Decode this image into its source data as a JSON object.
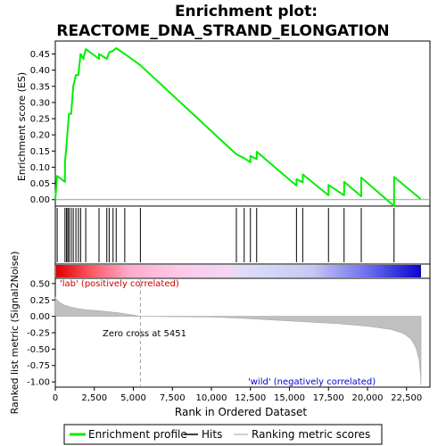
{
  "chart_data": {
    "type": "line",
    "title_line1": "Enrichment plot:",
    "title_line2": "REACTOME_DNA_STRAND_ELONGATION",
    "xlabel": "Rank in Ordered Dataset",
    "top_ylabel": "Enrichment score (ES)",
    "bottom_ylabel": "Ranked list metric (Signal2Noise)",
    "x_ticks": [
      0,
      2500,
      5000,
      7500,
      10000,
      12500,
      15000,
      17500,
      20000,
      22500
    ],
    "x_tick_labels": [
      "0",
      "2,500",
      "5,000",
      "7,500",
      "10,000",
      "12,500",
      "15,000",
      "17,500",
      "20,000",
      "22,500"
    ],
    "xlim": [
      0,
      24000
    ],
    "es_yticks": [
      0.0,
      0.05,
      0.1,
      0.15,
      0.2,
      0.25,
      0.3,
      0.35,
      0.4,
      0.45
    ],
    "es_ytick_labels": [
      "0.00",
      "0.05",
      "0.10",
      "0.15",
      "0.20",
      "0.25",
      "0.30",
      "0.35",
      "0.40",
      "0.45"
    ],
    "es_ylim": [
      -0.02,
      0.49
    ],
    "metric_yticks": [
      0.5,
      0.25,
      0.0,
      -0.25,
      -0.5,
      -0.75,
      -1.0
    ],
    "metric_ytick_labels": [
      "0.50",
      "0.25",
      "0.00",
      "-0.25",
      "-0.50",
      "-0.75",
      "-1.00"
    ],
    "metric_ylim": [
      -1.08,
      0.58
    ],
    "hits": [
      120,
      620,
      720,
      800,
      880,
      1020,
      1150,
      1320,
      1480,
      1620,
      1950,
      2800,
      3300,
      3450,
      3700,
      3900,
      4450,
      5450,
      11600,
      12100,
      12500,
      12900,
      15450,
      15850,
      17500,
      18500,
      19600,
      21700
    ],
    "es_points": [
      [
        0,
        0.0
      ],
      [
        120,
        0.073
      ],
      [
        620,
        0.055
      ],
      [
        620,
        0.115
      ],
      [
        720,
        0.17
      ],
      [
        800,
        0.22
      ],
      [
        880,
        0.265
      ],
      [
        1020,
        0.265
      ],
      [
        1150,
        0.35
      ],
      [
        1320,
        0.385
      ],
      [
        1480,
        0.385
      ],
      [
        1620,
        0.45
      ],
      [
        1800,
        0.435
      ],
      [
        1950,
        0.465
      ],
      [
        2800,
        0.435
      ],
      [
        2800,
        0.45
      ],
      [
        3300,
        0.435
      ],
      [
        3450,
        0.455
      ],
      [
        3700,
        0.46
      ],
      [
        3900,
        0.468
      ],
      [
        4450,
        0.45
      ],
      [
        5450,
        0.415
      ],
      [
        11600,
        0.14
      ],
      [
        12100,
        0.128
      ],
      [
        12500,
        0.115
      ],
      [
        12500,
        0.135
      ],
      [
        12900,
        0.125
      ],
      [
        12900,
        0.148
      ],
      [
        15450,
        0.043
      ],
      [
        15450,
        0.063
      ],
      [
        15850,
        0.053
      ],
      [
        15850,
        0.078
      ],
      [
        17500,
        0.013
      ],
      [
        17500,
        0.045
      ],
      [
        18500,
        0.013
      ],
      [
        18500,
        0.055
      ],
      [
        19600,
        0.01
      ],
      [
        19600,
        0.068
      ],
      [
        21700,
        -0.02
      ],
      [
        21700,
        0.07
      ],
      [
        23400,
        0.002
      ]
    ],
    "metric_points": [
      [
        0,
        0.29
      ],
      [
        100,
        0.25
      ],
      [
        300,
        0.21
      ],
      [
        600,
        0.17
      ],
      [
        1000,
        0.14
      ],
      [
        1500,
        0.115
      ],
      [
        2000,
        0.1
      ],
      [
        3000,
        0.08
      ],
      [
        4000,
        0.055
      ],
      [
        5000,
        0.02
      ],
      [
        5451,
        0.0
      ],
      [
        7000,
        -0.005
      ],
      [
        10000,
        -0.01
      ],
      [
        12000,
        -0.03
      ],
      [
        15000,
        -0.07
      ],
      [
        18000,
        -0.11
      ],
      [
        20000,
        -0.15
      ],
      [
        21500,
        -0.2
      ],
      [
        22300,
        -0.26
      ],
      [
        22800,
        -0.35
      ],
      [
        23100,
        -0.48
      ],
      [
        23300,
        -0.66
      ],
      [
        23400,
        -0.9
      ],
      [
        23430,
        -1.05
      ]
    ],
    "zero_cross_rank": 5451,
    "zero_cross_label": "Zero cross at 5451",
    "pos_label": "'lab' (positively correlated)",
    "neg_label": "'wild' (negatively correlated)",
    "legend": [
      "Enrichment profile",
      "Hits",
      "Ranking metric scores"
    ],
    "colors": {
      "es_line": "#00ee00",
      "hits": "#000000",
      "metric_fill": "#c0c0c0",
      "zero_line": "#a0a0a0",
      "pos_text": "#cc0000",
      "neg_text": "#0000cc",
      "bar_red": "#dd0000",
      "bar_blue": "#1100cc"
    }
  }
}
